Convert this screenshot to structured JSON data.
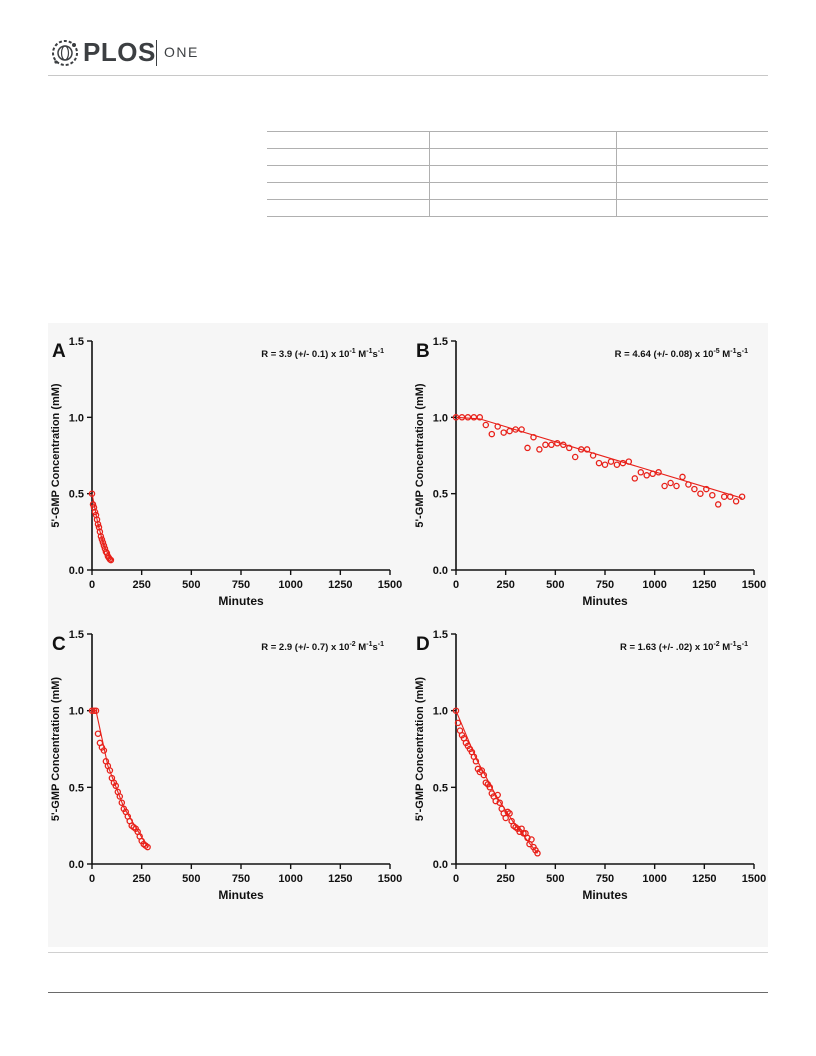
{
  "header": {
    "brand": "PLOS",
    "journal": "ONE"
  },
  "figure": {
    "x_label": "Minutes",
    "y_label": "5'-GMP Concentration (mM)",
    "series_color": "#e8211a"
  },
  "chart_data": [
    {
      "panel": "A",
      "type": "scatter",
      "annotation": {
        "prefix": "R = 3.9 (+/- 0.1) x 10",
        "exp": "-1",
        "units": " M",
        "units_exp": "-1",
        "s": "s",
        "s_exp": "-1"
      },
      "xlabel": "Minutes",
      "ylabel": "5'-GMP Concentration (mM)",
      "xlim": [
        0,
        1500
      ],
      "ylim": [
        0,
        1.5
      ],
      "xticks": [
        0,
        250,
        500,
        750,
        1000,
        1250,
        1500
      ],
      "yticks": [
        0.0,
        0.5,
        1.0,
        1.5
      ],
      "ytick_labels": [
        "0.0",
        "0.5",
        "1.0",
        "1.5"
      ],
      "x": [
        0,
        5,
        10,
        15,
        20,
        25,
        30,
        35,
        40,
        45,
        50,
        55,
        60,
        65,
        70,
        75,
        80,
        85,
        90,
        95
      ],
      "y": [
        0.5,
        0.43,
        0.41,
        0.38,
        0.36,
        0.33,
        0.3,
        0.28,
        0.25,
        0.22,
        0.2,
        0.18,
        0.16,
        0.14,
        0.12,
        0.11,
        0.09,
        0.08,
        0.07,
        0.065
      ],
      "fit": [
        [
          0,
          0.5
        ],
        [
          30,
          0.3
        ],
        [
          60,
          0.16
        ],
        [
          95,
          0.065
        ]
      ]
    },
    {
      "panel": "B",
      "type": "scatter",
      "annotation": {
        "prefix": "R = 4.64 (+/- 0.08) x 10",
        "exp": "-5",
        "units": " M",
        "units_exp": "-1",
        "s": "s",
        "s_exp": "-1"
      },
      "xlabel": "Minutes",
      "ylabel": "5'-GMP Concentration (mM)",
      "xlim": [
        0,
        1500
      ],
      "ylim": [
        0,
        1.5
      ],
      "xticks": [
        0,
        250,
        500,
        750,
        1000,
        1250,
        1500
      ],
      "yticks": [
        0.0,
        0.5,
        1.0,
        1.5
      ],
      "ytick_labels": [
        "0.0",
        "0.5",
        "1.0",
        "1.5"
      ],
      "x": [
        0,
        30,
        60,
        90,
        120,
        150,
        180,
        210,
        240,
        270,
        300,
        330,
        360,
        390,
        420,
        450,
        480,
        510,
        540,
        570,
        600,
        630,
        660,
        690,
        720,
        750,
        780,
        810,
        840,
        870,
        900,
        930,
        960,
        990,
        1020,
        1050,
        1080,
        1110,
        1140,
        1170,
        1200,
        1230,
        1260,
        1290,
        1320,
        1350,
        1380,
        1410,
        1440
      ],
      "y": [
        1.0,
        1.0,
        1.0,
        1.0,
        1.0,
        0.95,
        0.89,
        0.94,
        0.9,
        0.91,
        0.92,
        0.92,
        0.8,
        0.87,
        0.79,
        0.82,
        0.82,
        0.83,
        0.82,
        0.8,
        0.74,
        0.79,
        0.79,
        0.75,
        0.7,
        0.69,
        0.71,
        0.69,
        0.7,
        0.71,
        0.6,
        0.64,
        0.62,
        0.63,
        0.64,
        0.55,
        0.57,
        0.55,
        0.61,
        0.56,
        0.53,
        0.5,
        0.53,
        0.49,
        0.43,
        0.48,
        0.48,
        0.45,
        0.48
      ],
      "fit": [
        [
          0,
          1.0
        ],
        [
          120,
          0.99
        ],
        [
          1440,
          0.47
        ]
      ]
    },
    {
      "panel": "C",
      "type": "scatter",
      "annotation": {
        "prefix": "R = 2.9 (+/- 0.7) x 10",
        "exp": "-2",
        "units": " M",
        "units_exp": "-1",
        "s": "s",
        "s_exp": "-1"
      },
      "xlabel": "Minutes",
      "ylabel": "5'-GMP Concentration (mM)",
      "xlim": [
        0,
        1500
      ],
      "ylim": [
        0,
        1.5
      ],
      "xticks": [
        0,
        250,
        500,
        750,
        1000,
        1250,
        1500
      ],
      "yticks": [
        0.0,
        0.5,
        1.0,
        1.5
      ],
      "ytick_labels": [
        "0.0",
        "0.5",
        "1.0",
        "1.5"
      ],
      "x": [
        0,
        10,
        20,
        30,
        40,
        50,
        60,
        70,
        80,
        90,
        100,
        110,
        120,
        130,
        140,
        150,
        160,
        170,
        180,
        190,
        200,
        210,
        220,
        230,
        240,
        250,
        260,
        270,
        280
      ],
      "y": [
        1.0,
        1.0,
        1.0,
        0.85,
        0.79,
        0.76,
        0.74,
        0.67,
        0.64,
        0.61,
        0.56,
        0.53,
        0.51,
        0.47,
        0.44,
        0.4,
        0.36,
        0.34,
        0.31,
        0.28,
        0.25,
        0.24,
        0.23,
        0.21,
        0.18,
        0.15,
        0.13,
        0.12,
        0.11
      ],
      "fit": [
        [
          0,
          1.0
        ],
        [
          20,
          1.0
        ],
        [
          80,
          0.64
        ],
        [
          160,
          0.37
        ],
        [
          280,
          0.11
        ]
      ]
    },
    {
      "panel": "D",
      "type": "scatter",
      "annotation": {
        "prefix": "R = 1.63 (+/- .02) x 10",
        "exp": "-2",
        "units": " M",
        "units_exp": "-1",
        "s": "s",
        "s_exp": "-1"
      },
      "xlabel": "Minutes",
      "ylabel": "5'-GMP Concentration (mM)",
      "xlim": [
        0,
        1500
      ],
      "ylim": [
        0,
        1.5
      ],
      "xticks": [
        0,
        250,
        500,
        750,
        1000,
        1250,
        1500
      ],
      "yticks": [
        0.0,
        0.5,
        1.0,
        1.5
      ],
      "ytick_labels": [
        "0.0",
        "0.5",
        "1.0",
        "1.5"
      ],
      "x": [
        0,
        10,
        20,
        30,
        40,
        50,
        60,
        70,
        80,
        90,
        100,
        110,
        120,
        130,
        140,
        150,
        160,
        170,
        180,
        190,
        200,
        210,
        220,
        230,
        240,
        250,
        260,
        270,
        280,
        290,
        300,
        310,
        320,
        330,
        340,
        350,
        360,
        370,
        380,
        390,
        400,
        410
      ],
      "y": [
        1.0,
        0.92,
        0.87,
        0.84,
        0.82,
        0.79,
        0.77,
        0.75,
        0.73,
        0.7,
        0.67,
        0.62,
        0.6,
        0.61,
        0.58,
        0.53,
        0.52,
        0.5,
        0.46,
        0.44,
        0.41,
        0.45,
        0.4,
        0.36,
        0.33,
        0.3,
        0.34,
        0.33,
        0.28,
        0.25,
        0.24,
        0.23,
        0.21,
        0.23,
        0.2,
        0.2,
        0.17,
        0.13,
        0.16,
        0.11,
        0.09,
        0.07
      ],
      "fit": [
        [
          0,
          1.0
        ],
        [
          100,
          0.69
        ],
        [
          200,
          0.45
        ],
        [
          300,
          0.25
        ],
        [
          410,
          0.07
        ]
      ]
    }
  ]
}
